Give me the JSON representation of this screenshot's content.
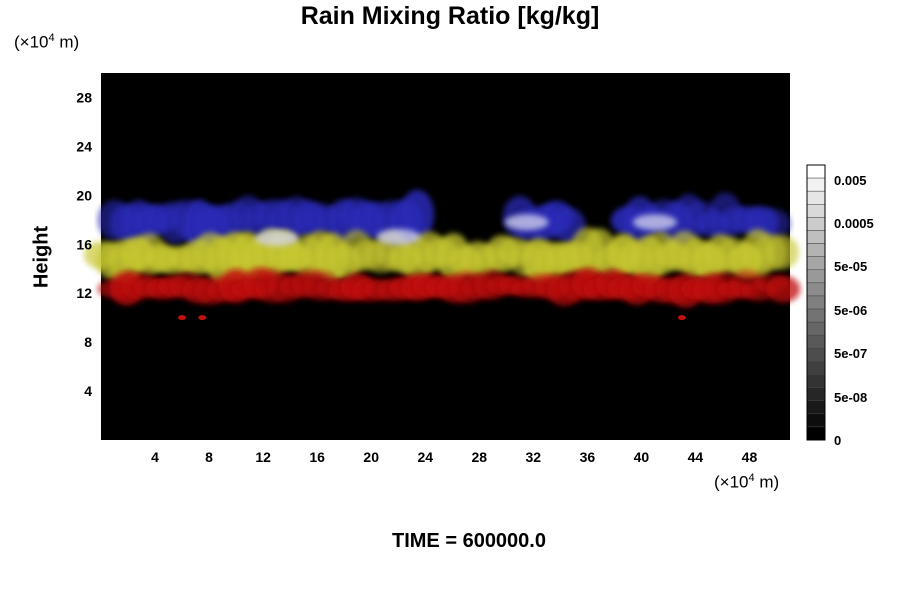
{
  "title": "Rain Mixing Ratio [kg/kg]",
  "y_unit_prefix": "(×10",
  "y_unit_exp": "4",
  "y_unit_suffix": " m)",
  "x_unit_prefix": "(×10",
  "x_unit_exp": "4",
  "x_unit_suffix": " m)",
  "time_label": "TIME = 600000.0",
  "colors": {
    "background": "#000000",
    "low_layer": "#c01010",
    "mid_layer": "#c8c830",
    "upper_layer": "#2a2ab8",
    "top_highlight": "#d8d8f0"
  },
  "chart_data": {
    "type": "heatmap",
    "title": "Rain Mixing Ratio [kg/kg]",
    "xlabel": "",
    "ylabel": "Height",
    "xlim": [
      0,
      51
    ],
    "ylim": [
      0,
      30
    ],
    "x_ticks": [
      "4",
      "8",
      "12",
      "16",
      "20",
      "24",
      "28",
      "32",
      "36",
      "40",
      "44",
      "48"
    ],
    "y_ticks": [
      "4",
      "8",
      "12",
      "16",
      "20",
      "24",
      "28"
    ],
    "colorbar_labels": [
      "0.005",
      "0.0005",
      "5e-05",
      "5e-06",
      "5e-07",
      "5e-08",
      "0"
    ],
    "layers": [
      {
        "name": "upper",
        "color": "#2a2ab8",
        "y_min": 16.5,
        "y_max": 19.5,
        "x_ranges": [
          [
            1,
            18
          ],
          [
            18,
            24
          ],
          [
            31,
            35
          ],
          [
            39,
            50
          ]
        ]
      },
      {
        "name": "middle",
        "color": "#c8c830",
        "y_min": 13.5,
        "y_max": 16.5,
        "x_ranges": [
          [
            0,
            51
          ]
        ]
      },
      {
        "name": "lower",
        "color": "#c01010",
        "y_min": 11.5,
        "y_max": 13.5,
        "x_ranges": [
          [
            1,
            51
          ]
        ]
      },
      {
        "name": "drops",
        "color": "#c01010",
        "points": [
          [
            6,
            10
          ],
          [
            7.5,
            10
          ],
          [
            43,
            10
          ]
        ]
      }
    ]
  }
}
